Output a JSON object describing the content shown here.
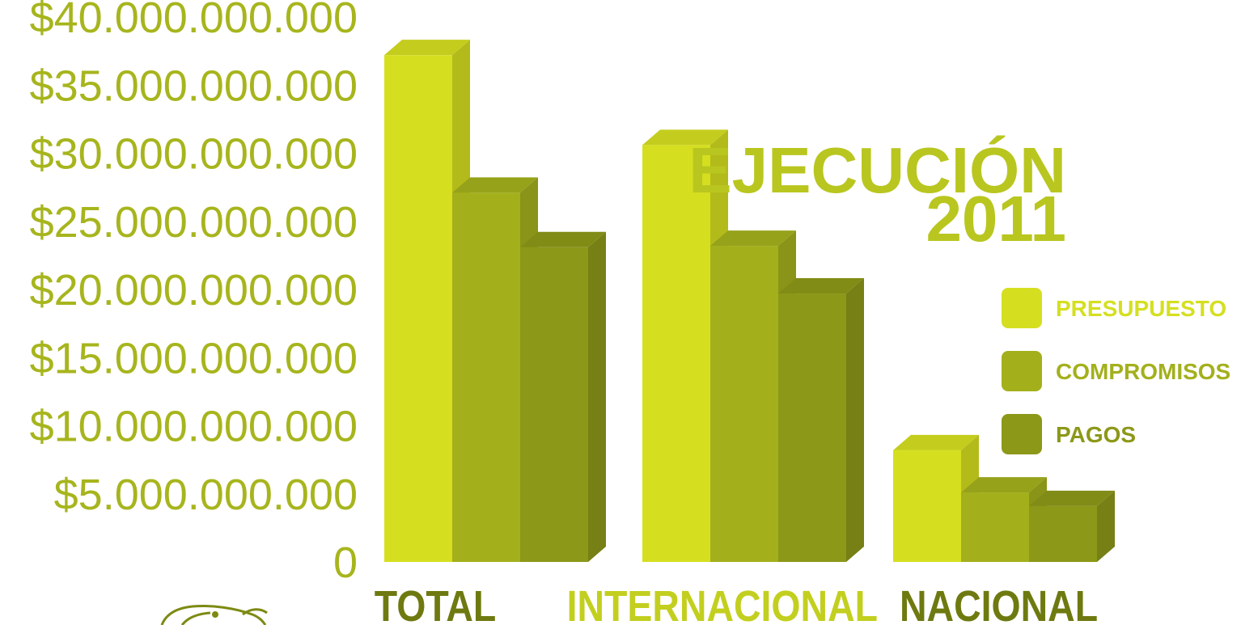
{
  "title": {
    "line1": "EJECUCIÓN",
    "line2": "2011"
  },
  "colors": {
    "presupuesto": "#d5df20",
    "compromisos": "#a3b01c",
    "pagos": "#8c9818",
    "axis_text": "#a7b51d",
    "title": "#b9c61f",
    "cat_dark": "#6e7a10",
    "cat_light": "#c3cf1f"
  },
  "chart_data": {
    "type": "bar",
    "categories": [
      "TOTAL",
      "INTERNACIONAL",
      "NACIONAL"
    ],
    "series": [
      {
        "name": "PRESUPUESTO",
        "values": [
          37200000000,
          30600000000,
          8200000000
        ]
      },
      {
        "name": "COMPROMISOS",
        "values": [
          27100000000,
          23200000000,
          5100000000
        ]
      },
      {
        "name": "PAGOS",
        "values": [
          23100000000,
          19700000000,
          4100000000
        ]
      }
    ],
    "y_tick_labels": [
      "0",
      "$5.000.000.000",
      "$10.000.000.000",
      "$15.000.000.000",
      "$20.000.000.000",
      "$25.000.000.000",
      "$30.000.000.000",
      "$35.000.000.000",
      "$40.000.000.000"
    ],
    "ylim": [
      0,
      40000000000
    ],
    "legend_position": "right",
    "grid": false
  }
}
